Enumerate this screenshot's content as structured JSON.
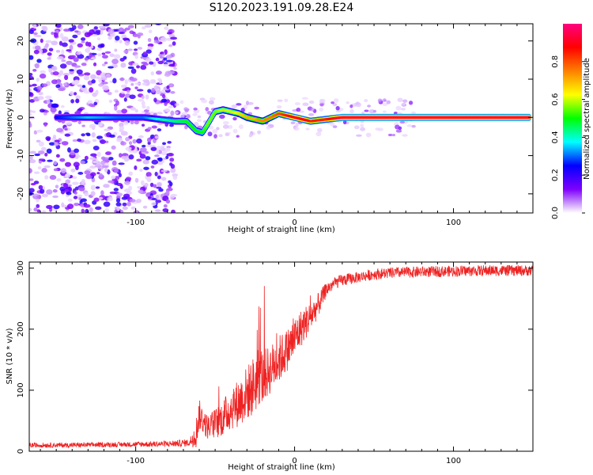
{
  "title": "S120.2023.191.09.28.E24",
  "chart_data": [
    {
      "type": "heatmap",
      "xlabel": "Height of straight line (km)",
      "ylabel": "Frequency (Hz)",
      "xlim": [
        -167,
        150
      ],
      "ylim": [
        -25,
        24.5
      ],
      "xticks": [
        -100,
        0,
        100
      ],
      "yticks": [
        -20,
        -10,
        0,
        10,
        20
      ],
      "colorbar": {
        "label": "Normalized spectral amplitude",
        "ticks": [
          "0.0",
          "0.2",
          "0.4",
          "0.6",
          "0.8"
        ],
        "tick_values": [
          0.0,
          0.2,
          0.4,
          0.6,
          0.8
        ],
        "range": [
          0.0,
          1.0
        ],
        "colors": [
          "#ffffff",
          "#7f00ff",
          "#0000ff",
          "#00ffff",
          "#00ff00",
          "#ffff00",
          "#ff8000",
          "#ff0000",
          "#ff0080"
        ]
      },
      "noise_region_x": [
        -167,
        -75
      ],
      "ridge": {
        "x": [
          -150,
          -130,
          -110,
          -95,
          -85,
          -75,
          -68,
          -62,
          -58,
          -55,
          -50,
          -45,
          -40,
          -35,
          -30,
          -25,
          -20,
          -15,
          -10,
          -5,
          0,
          5,
          10,
          20,
          30,
          50,
          70,
          100,
          130,
          148
        ],
        "freq": [
          0.0,
          0.0,
          0.0,
          0.0,
          -0.5,
          -1.0,
          -1.0,
          -3.5,
          -4.0,
          -2.0,
          1.5,
          2.0,
          1.5,
          1.0,
          0.0,
          -0.5,
          -1.0,
          0.0,
          1.0,
          0.5,
          0.0,
          -0.5,
          -1.0,
          -0.5,
          0.0,
          0.0,
          0.0,
          0.0,
          0.0,
          0.0
        ],
        "amplitude": [
          0.25,
          0.35,
          0.3,
          0.3,
          0.4,
          0.45,
          0.5,
          0.5,
          0.5,
          0.55,
          0.55,
          0.6,
          0.6,
          0.65,
          0.7,
          0.7,
          0.75,
          0.75,
          0.8,
          0.85,
          0.9,
          0.9,
          0.85,
          0.85,
          0.95,
          0.95,
          0.95,
          0.95,
          0.95,
          0.95
        ]
      }
    },
    {
      "type": "line",
      "xlabel": "Height of straight line (km)",
      "ylabel": "SNR (10 * v/v)",
      "xlim": [
        -167,
        150
      ],
      "ylim": [
        0,
        310
      ],
      "xticks": [
        -100,
        0,
        100
      ],
      "yticks": [
        0,
        100,
        200,
        300
      ],
      "series": [
        {
          "color": "#ee2222",
          "x": [
            -167,
            -140,
            -110,
            -80,
            -66,
            -62,
            -60,
            -55,
            -50,
            -45,
            -40,
            -35,
            -30,
            -25,
            -22,
            -20,
            -15,
            -10,
            -5,
            0,
            5,
            10,
            15,
            20,
            25,
            30,
            40,
            50,
            60,
            80,
            100,
            120,
            150
          ],
          "values": [
            10,
            10,
            11,
            12,
            14,
            30,
            60,
            40,
            45,
            55,
            70,
            80,
            95,
            110,
            130,
            120,
            135,
            150,
            165,
            185,
            205,
            220,
            240,
            265,
            275,
            280,
            285,
            290,
            292,
            294,
            295,
            296,
            296
          ],
          "noise": [
            4,
            4,
            4,
            5,
            6,
            25,
            25,
            20,
            25,
            30,
            35,
            40,
            45,
            50,
            55,
            45,
            40,
            40,
            35,
            35,
            30,
            25,
            20,
            12,
            10,
            10,
            9,
            9,
            9,
            9,
            9,
            9,
            9
          ]
        }
      ]
    }
  ]
}
